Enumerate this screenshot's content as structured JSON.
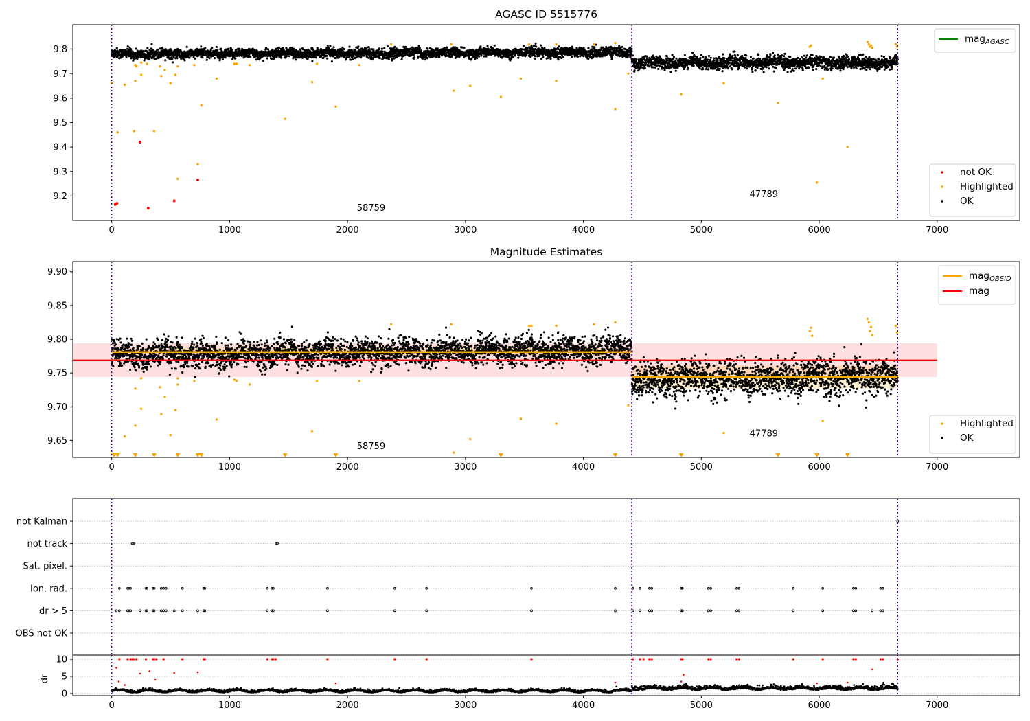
{
  "chart_data": [
    {
      "type": "scatter",
      "title": "AGASC ID 5515776",
      "xlim": [
        -330,
        7700
      ],
      "ylim": [
        9.1,
        9.9
      ],
      "xticks": [
        0,
        1000,
        2000,
        3000,
        4000,
        5000,
        6000,
        7000
      ],
      "yticks": [
        9.2,
        9.3,
        9.4,
        9.5,
        9.6,
        9.7,
        9.8
      ],
      "yticklabels": [
        "9.2",
        "9.3",
        "9.4",
        "9.5",
        "9.6",
        "9.7",
        "9.8"
      ],
      "obsid_boundaries": [
        0,
        4410,
        6665
      ],
      "obsid_labels": [
        {
          "text": "58759",
          "x": 2200,
          "y": 9.14
        },
        {
          "text": "47789",
          "x": 5530,
          "y": 9.195
        }
      ],
      "legend_top": [
        {
          "label": "mag",
          "sub": "AGASC",
          "color": "#008000",
          "kind": "line"
        }
      ],
      "legend_bottom": [
        {
          "label": "not OK",
          "color": "#ff0000",
          "kind": "dot"
        },
        {
          "label": "Highlighted",
          "color": "#ffa500",
          "kind": "dot"
        },
        {
          "label": "OK",
          "color": "#000000",
          "kind": "dot"
        }
      ],
      "series": [
        {
          "label": "OK",
          "color": "#000000",
          "segments": [
            {
              "x0": 0,
              "x1": 4410,
              "base_start": 9.78,
              "base_end": 9.788,
              "noise": 0.013
            },
            {
              "x0": 4410,
              "x1": 6665,
              "base_start": 9.745,
              "base_end": 9.745,
              "noise": 0.017
            }
          ]
        },
        {
          "label": "Highlighted",
          "color": "#ffa500",
          "points": [
            [
              0,
              9.66
            ],
            [
              50,
              9.46
            ],
            [
              110,
              9.655
            ],
            [
              190,
              9.465
            ],
            [
              200,
              9.735
            ],
            [
              210,
              9.73
            ],
            [
              200,
              9.67
            ],
            [
              250,
              9.745
            ],
            [
              250,
              9.695
            ],
            [
              300,
              9.74
            ],
            [
              360,
              9.465
            ],
            [
              410,
              9.73
            ],
            [
              420,
              9.69
            ],
            [
              450,
              9.715
            ],
            [
              500,
              9.66
            ],
            [
              540,
              9.695
            ],
            [
              560,
              9.27
            ],
            [
              560,
              9.73
            ],
            [
              700,
              9.735
            ],
            [
              730,
              9.33
            ],
            [
              760,
              9.57
            ],
            [
              890,
              9.68
            ],
            [
              1040,
              9.74
            ],
            [
              1060,
              9.74
            ],
            [
              1170,
              9.735
            ],
            [
              1470,
              9.515
            ],
            [
              1700,
              9.665
            ],
            [
              1740,
              9.74
            ],
            [
              1900,
              9.565
            ],
            [
              2100,
              9.735
            ],
            [
              2370,
              9.82
            ],
            [
              2880,
              9.82
            ],
            [
              2900,
              9.63
            ],
            [
              3040,
              9.65
            ],
            [
              3300,
              9.605
            ],
            [
              3470,
              9.68
            ],
            [
              3540,
              9.82
            ],
            [
              3770,
              9.82
            ],
            [
              3770,
              9.67
            ],
            [
              4090,
              9.82
            ],
            [
              4270,
              9.555
            ],
            [
              4270,
              9.825
            ],
            [
              4380,
              9.7
            ],
            [
              4830,
              9.615
            ],
            [
              5190,
              9.66
            ],
            [
              5650,
              9.58
            ],
            [
              5920,
              9.81
            ],
            [
              5930,
              9.815
            ],
            [
              5980,
              9.255
            ],
            [
              6030,
              9.68
            ],
            [
              6240,
              9.4
            ],
            [
              6410,
              9.83
            ],
            [
              6420,
              9.82
            ],
            [
              6430,
              9.81
            ],
            [
              6440,
              9.815
            ],
            [
              6450,
              9.805
            ],
            [
              6650,
              9.82
            ],
            [
              6660,
              9.81
            ]
          ]
        },
        {
          "label": "not OK",
          "color": "#ff0000",
          "points": [
            [
              30,
              9.165
            ],
            [
              45,
              9.17
            ],
            [
              240,
              9.42
            ],
            [
              310,
              9.15
            ],
            [
              530,
              9.18
            ],
            [
              730,
              9.265
            ]
          ]
        }
      ]
    },
    {
      "type": "scatter",
      "title": "Magnitude Estimates",
      "xlim": [
        -330,
        7700
      ],
      "ylim": [
        9.625,
        9.915
      ],
      "xticks": [
        0,
        1000,
        2000,
        3000,
        4000,
        5000,
        6000,
        7000
      ],
      "yticks": [
        9.65,
        9.7,
        9.75,
        9.8,
        9.85,
        9.9
      ],
      "yticklabels": [
        "9.65",
        "9.70",
        "9.75",
        "9.80",
        "9.85",
        "9.90"
      ],
      "obsid_boundaries": [
        0,
        4410,
        6665
      ],
      "obsid_labels": [
        {
          "text": "58759",
          "x": 2200,
          "y": 9.637
        },
        {
          "text": "47789",
          "x": 5530,
          "y": 9.656
        }
      ],
      "mag_line": {
        "value": 9.769,
        "band": [
          9.744,
          9.794
        ],
        "x0": -330,
        "x1": 7000
      },
      "obsid_mags": [
        {
          "x0": 0,
          "x1": 4410,
          "value": 9.781,
          "band": [
            9.775,
            9.787
          ]
        },
        {
          "x0": 4410,
          "x1": 6665,
          "value": 9.744,
          "band": [
            9.727,
            9.761
          ]
        }
      ],
      "legend_top": [
        {
          "label": "mag",
          "sub": "OBSID",
          "color": "#ffa500",
          "kind": "line"
        },
        {
          "label": "mag",
          "sub": "",
          "color": "#ff0000",
          "kind": "line"
        }
      ],
      "legend_bottom": [
        {
          "label": "Highlighted",
          "color": "#ffa500",
          "kind": "dot"
        },
        {
          "label": "OK",
          "color": "#000000",
          "kind": "dot"
        }
      ],
      "series": [
        {
          "label": "OK",
          "color": "#000000",
          "segments": [
            {
              "x0": 0,
              "x1": 4410,
              "base_start": 9.776,
              "base_end": 9.785,
              "noise": 0.013
            },
            {
              "x0": 4410,
              "x1": 6665,
              "base_start": 9.74,
              "base_end": 9.745,
              "noise": 0.017
            }
          ]
        },
        {
          "label": "Highlighted",
          "color": "#ffa500",
          "points": [
            [
              200,
              9.727
            ],
            [
              200,
              9.672
            ],
            [
              250,
              9.742
            ],
            [
              250,
              9.697
            ],
            [
              410,
              9.729
            ],
            [
              420,
              9.689
            ],
            [
              450,
              9.715
            ],
            [
              500,
              9.658
            ],
            [
              540,
              9.695
            ],
            [
              560,
              9.733
            ],
            [
              560,
              9.742
            ],
            [
              700,
              9.738
            ],
            [
              110,
              9.656
            ],
            [
              890,
              9.681
            ],
            [
              1040,
              9.74
            ],
            [
              1060,
              9.738
            ],
            [
              1170,
              9.733
            ],
            [
              1700,
              9.664
            ],
            [
              1740,
              9.738
            ],
            [
              2100,
              9.738
            ],
            [
              2370,
              9.822
            ],
            [
              2880,
              9.822
            ],
            [
              2900,
              9.632
            ],
            [
              3040,
              9.652
            ],
            [
              3470,
              9.682
            ],
            [
              3540,
              9.82
            ],
            [
              3560,
              9.82
            ],
            [
              3770,
              9.82
            ],
            [
              3770,
              9.675
            ],
            [
              4090,
              9.822
            ],
            [
              4270,
              9.825
            ],
            [
              4380,
              9.702
            ],
            [
              5190,
              9.661
            ],
            [
              5920,
              9.812
            ],
            [
              5930,
              9.817
            ],
            [
              5940,
              9.805
            ],
            [
              6030,
              9.679
            ],
            [
              6410,
              9.83
            ],
            [
              6420,
              9.825
            ],
            [
              6430,
              9.812
            ],
            [
              6440,
              9.818
            ],
            [
              6450,
              9.806
            ],
            [
              6650,
              9.82
            ],
            [
              6660,
              9.81
            ]
          ]
        },
        {
          "label": "Highlighted (clipped)",
          "color": "#ffa500",
          "marker": "triangle-down",
          "points": [
            [
              20,
              9.625
            ],
            [
              50,
              9.625
            ],
            [
              200,
              9.625
            ],
            [
              360,
              9.625
            ],
            [
              560,
              9.625
            ],
            [
              730,
              9.625
            ],
            [
              760,
              9.625
            ],
            [
              1470,
              9.625
            ],
            [
              1900,
              9.625
            ],
            [
              3300,
              9.625
            ],
            [
              4270,
              9.625
            ],
            [
              4830,
              9.625
            ],
            [
              5650,
              9.625
            ],
            [
              5980,
              9.625
            ],
            [
              6240,
              9.625
            ]
          ]
        }
      ]
    },
    {
      "type": "scatter",
      "title": "",
      "xlim": [
        -330,
        7700
      ],
      "xticks": [
        0,
        1000,
        2000,
        3000,
        4000,
        5000,
        6000,
        7000
      ],
      "obsid_boundaries": [
        0,
        4410,
        6665
      ],
      "flag_rows": [
        "not Kalman",
        "not track",
        "Sat. pixel.",
        "Ion. rad.",
        "dr > 5",
        "OBS not OK"
      ],
      "flags": {
        "not Kalman": [
          6665
        ],
        "not track": [
          175,
          185,
          1395,
          1405
        ],
        "Sat. pixel.": [],
        "Ion. rad.": [
          65,
          135,
          145,
          160,
          290,
          300,
          350,
          360,
          420,
          440,
          460,
          600,
          780,
          790,
          1320,
          1360,
          1370,
          1830,
          2400,
          2670,
          3560,
          4270,
          4420,
          4480,
          4560,
          4580,
          4830,
          4840,
          5060,
          5080,
          5300,
          5320,
          5780,
          6030,
          6290,
          6310,
          6520,
          6540
        ],
        "dr > 5": [
          40,
          65,
          135,
          145,
          160,
          240,
          290,
          300,
          350,
          360,
          420,
          440,
          460,
          530,
          600,
          730,
          780,
          790,
          1320,
          1360,
          1370,
          1830,
          2400,
          2670,
          3560,
          4270,
          4420,
          4480,
          4560,
          4580,
          4830,
          4840,
          5060,
          5080,
          5300,
          5320,
          5780,
          6030,
          6290,
          6310,
          6450,
          6520,
          6540
        ],
        "OBS not OK": []
      },
      "dr": {
        "ylabel": "dr",
        "ylim": [
          -0.6,
          11.2
        ],
        "yticks": [
          0,
          5,
          10
        ],
        "yticklabels": [
          "0",
          "5",
          "10"
        ],
        "segments": [
          {
            "x0": 0,
            "x1": 4410,
            "base": 0.55,
            "noise": 0.3
          },
          {
            "x0": 4410,
            "x1": 6665,
            "base": 1.2,
            "noise": 0.5
          }
        ],
        "clipped": [
          65,
          135,
          160,
          175,
          185,
          210,
          290,
          350,
          360,
          380,
          440,
          600,
          780,
          790,
          1320,
          1360,
          1370,
          1390,
          1830,
          2400,
          2670,
          3560,
          4420,
          4480,
          4510,
          4560,
          4580,
          4830,
          4840,
          5060,
          5080,
          5300,
          5320,
          5780,
          6030,
          6290,
          6310,
          6520,
          6540,
          6665
        ],
        "outliers": [
          [
            40,
            7.5
          ],
          [
            240,
            5.8
          ],
          [
            320,
            6.5
          ],
          [
            530,
            6.0
          ],
          [
            730,
            6.2
          ],
          [
            60,
            3.5
          ],
          [
            110,
            2.5
          ],
          [
            370,
            4.0
          ],
          [
            1900,
            3.0
          ],
          [
            4270,
            3.2
          ],
          [
            4830,
            3.5
          ],
          [
            4850,
            5.5
          ],
          [
            5980,
            3.0
          ],
          [
            6240,
            3.2
          ],
          [
            6450,
            7.0
          ]
        ]
      }
    }
  ]
}
